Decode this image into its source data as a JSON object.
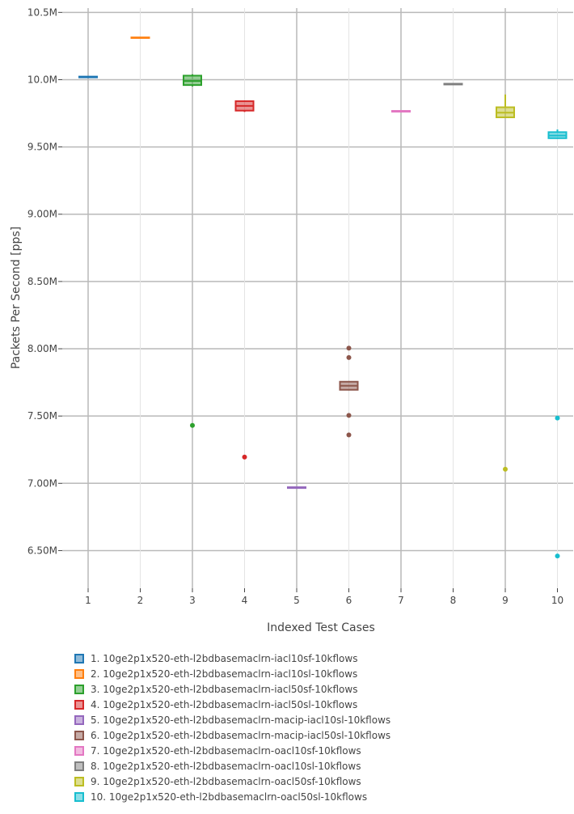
{
  "chart_data": {
    "type": "box",
    "xlabel": "Indexed Test Cases",
    "ylabel": "Packets Per Second [pps]",
    "categories": [
      "1",
      "2",
      "3",
      "4",
      "5",
      "6",
      "7",
      "8",
      "9",
      "10"
    ],
    "y_ticks": [
      {
        "value": 6500000,
        "label": "6.50M"
      },
      {
        "value": 7000000,
        "label": "7.00M"
      },
      {
        "value": 7500000,
        "label": "7.50M"
      },
      {
        "value": 8000000,
        "label": "8.00M"
      },
      {
        "value": 8500000,
        "label": "8.50M"
      },
      {
        "value": 9000000,
        "label": "9.00M"
      },
      {
        "value": 9500000,
        "label": "9.50M"
      },
      {
        "value": 10000000,
        "label": "10.0M"
      },
      {
        "value": 10500000,
        "label": "10.5M"
      }
    ],
    "ylim": [
      6220000,
      10520000
    ],
    "grid": true,
    "legend_position": "bottom",
    "series": [
      {
        "name": "1. 10ge2p1x520-eth-l2bdbasemaclrn-iacl10sf-10kflows",
        "color": "#1f77b4",
        "min": 10015000,
        "q1": 10017000,
        "median": 10020000,
        "q3": 10023000,
        "max": 10025000,
        "outliers": []
      },
      {
        "name": "2. 10ge2p1x520-eth-l2bdbasemaclrn-iacl10sl-10kflows",
        "color": "#ff7f0e",
        "min": 10310000,
        "q1": 10310000,
        "median": 10312000,
        "q3": 10314000,
        "max": 10314000,
        "outliers": []
      },
      {
        "name": "3. 10ge2p1x520-eth-l2bdbasemaclrn-iacl50sf-10kflows",
        "color": "#2ca02c",
        "min": 9950000,
        "q1": 9960000,
        "median": 9990000,
        "q3": 10030000,
        "max": 10040000,
        "outliers": [
          7430000
        ]
      },
      {
        "name": "4. 10ge2p1x520-eth-l2bdbasemaclrn-iacl50sl-10kflows",
        "color": "#d62728",
        "min": 9760000,
        "q1": 9770000,
        "median": 9805000,
        "q3": 9840000,
        "max": 9845000,
        "outliers": [
          7195000
        ]
      },
      {
        "name": "5. 10ge2p1x520-eth-l2bdbasemaclrn-macip-iacl10sl-10kflows",
        "color": "#9467bd",
        "min": 6963000,
        "q1": 6965000,
        "median": 6968000,
        "q3": 6971000,
        "max": 6973000,
        "outliers": []
      },
      {
        "name": "6. 10ge2p1x520-eth-l2bdbasemaclrn-macip-iacl50sl-10kflows",
        "color": "#8c564b",
        "min": 7690000,
        "q1": 7695000,
        "median": 7725000,
        "q3": 7755000,
        "max": 7760000,
        "outliers": [
          8005000,
          7935000,
          7505000,
          7360000
        ]
      },
      {
        "name": "7. 10ge2p1x520-eth-l2bdbasemaclrn-oacl10sf-10kflows",
        "color": "#e377c2",
        "min": 9760000,
        "q1": 9762000,
        "median": 9765000,
        "q3": 9768000,
        "max": 9770000,
        "outliers": []
      },
      {
        "name": "8. 10ge2p1x520-eth-l2bdbasemaclrn-oacl10sl-10kflows",
        "color": "#7f7f7f",
        "min": 9963000,
        "q1": 9964000,
        "median": 9967000,
        "q3": 9970000,
        "max": 9971000,
        "outliers": []
      },
      {
        "name": "9. 10ge2p1x520-eth-l2bdbasemaclrn-oacl50sf-10kflows",
        "color": "#bcbd22",
        "min": 9715000,
        "q1": 9720000,
        "median": 9755000,
        "q3": 9795000,
        "max": 9890000,
        "outliers": [
          7105000
        ]
      },
      {
        "name": "10. 10ge2p1x520-eth-l2bdbasemaclrn-oacl50sl-10kflows",
        "color": "#17becf",
        "min": 9560000,
        "q1": 9565000,
        "median": 9585000,
        "q3": 9610000,
        "max": 9630000,
        "outliers": [
          7485000,
          6460000
        ]
      }
    ]
  }
}
